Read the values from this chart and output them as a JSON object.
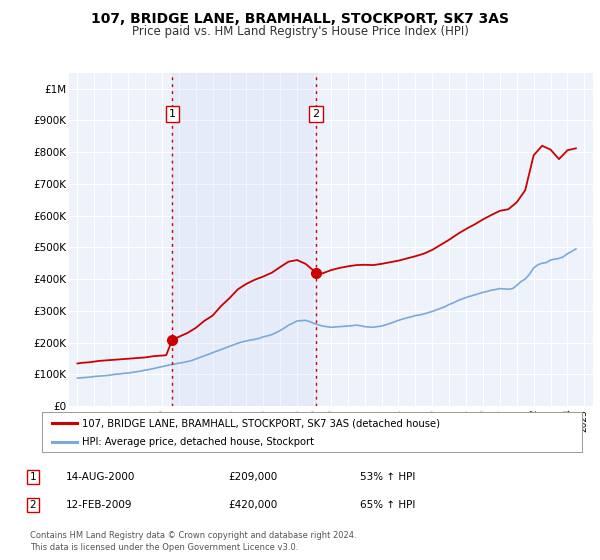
{
  "title": "107, BRIDGE LANE, BRAMHALL, STOCKPORT, SK7 3AS",
  "subtitle": "Price paid vs. HM Land Registry's House Price Index (HPI)",
  "xlim": [
    1994.5,
    2025.5
  ],
  "ylim": [
    0,
    1050000
  ],
  "yticks": [
    0,
    100000,
    200000,
    300000,
    400000,
    500000,
    600000,
    700000,
    800000,
    900000,
    1000000
  ],
  "ytick_labels": [
    "£0",
    "£100K",
    "£200K",
    "£300K",
    "£400K",
    "£500K",
    "£600K",
    "£700K",
    "£800K",
    "£900K",
    "£1M"
  ],
  "xticks": [
    1995,
    1996,
    1997,
    1998,
    1999,
    2000,
    2001,
    2002,
    2003,
    2004,
    2005,
    2006,
    2007,
    2008,
    2009,
    2010,
    2011,
    2012,
    2013,
    2014,
    2015,
    2016,
    2017,
    2018,
    2019,
    2020,
    2021,
    2022,
    2023,
    2024,
    2025
  ],
  "background_color": "#ffffff",
  "plot_bg_color": "#eef2fa",
  "grid_color": "#ffffff",
  "red_line_color": "#cc0000",
  "blue_line_color": "#7aaadd",
  "sale1_x": 2000.617,
  "sale1_y": 209000,
  "sale2_x": 2009.12,
  "sale2_y": 420000,
  "vline_color": "#cc0000",
  "marker_color": "#cc0000",
  "marker_size": 7,
  "legend_label_red": "107, BRIDGE LANE, BRAMHALL, STOCKPORT, SK7 3AS (detached house)",
  "legend_label_blue": "HPI: Average price, detached house, Stockport",
  "annotation1_num": "1",
  "annotation2_num": "2",
  "annot1_date": "14-AUG-2000",
  "annot1_price": "£209,000",
  "annot1_hpi": "53% ↑ HPI",
  "annot2_date": "12-FEB-2009",
  "annot2_price": "£420,000",
  "annot2_hpi": "65% ↑ HPI",
  "footer1": "Contains HM Land Registry data © Crown copyright and database right 2024.",
  "footer2": "This data is licensed under the Open Government Licence v3.0.",
  "hpi_x": [
    1995.0,
    1995.25,
    1995.5,
    1995.75,
    1996.0,
    1996.25,
    1996.5,
    1996.75,
    1997.0,
    1997.25,
    1997.5,
    1997.75,
    1998.0,
    1998.25,
    1998.5,
    1998.75,
    1999.0,
    1999.25,
    1999.5,
    1999.75,
    2000.0,
    2000.25,
    2000.5,
    2000.75,
    2001.0,
    2001.25,
    2001.5,
    2001.75,
    2002.0,
    2002.25,
    2002.5,
    2002.75,
    2003.0,
    2003.25,
    2003.5,
    2003.75,
    2004.0,
    2004.25,
    2004.5,
    2004.75,
    2005.0,
    2005.25,
    2005.5,
    2005.75,
    2006.0,
    2006.25,
    2006.5,
    2006.75,
    2007.0,
    2007.25,
    2007.5,
    2007.75,
    2008.0,
    2008.25,
    2008.5,
    2008.75,
    2009.0,
    2009.25,
    2009.5,
    2009.75,
    2010.0,
    2010.25,
    2010.5,
    2010.75,
    2011.0,
    2011.25,
    2011.5,
    2011.75,
    2012.0,
    2012.25,
    2012.5,
    2012.75,
    2013.0,
    2013.25,
    2013.5,
    2013.75,
    2014.0,
    2014.25,
    2014.5,
    2014.75,
    2015.0,
    2015.25,
    2015.5,
    2015.75,
    2016.0,
    2016.25,
    2016.5,
    2016.75,
    2017.0,
    2017.25,
    2017.5,
    2017.75,
    2018.0,
    2018.25,
    2018.5,
    2018.75,
    2019.0,
    2019.25,
    2019.5,
    2019.75,
    2020.0,
    2020.25,
    2020.5,
    2020.75,
    2021.0,
    2021.25,
    2021.5,
    2021.75,
    2022.0,
    2022.25,
    2022.5,
    2022.75,
    2023.0,
    2023.25,
    2023.5,
    2023.75,
    2024.0,
    2024.25,
    2024.5
  ],
  "hpi_y": [
    88000,
    89000,
    90000,
    91000,
    93000,
    94000,
    95000,
    96000,
    98000,
    100000,
    101000,
    103000,
    104000,
    106000,
    108000,
    110000,
    113000,
    115000,
    118000,
    121000,
    124000,
    127000,
    130000,
    132000,
    135000,
    137000,
    140000,
    143000,
    148000,
    153000,
    158000,
    163000,
    168000,
    173000,
    178000,
    183000,
    188000,
    193000,
    198000,
    202000,
    205000,
    208000,
    210000,
    213000,
    218000,
    221000,
    225000,
    231000,
    238000,
    246000,
    255000,
    261000,
    268000,
    269000,
    270000,
    266000,
    260000,
    256000,
    252000,
    250000,
    248000,
    249000,
    250000,
    251000,
    252000,
    253000,
    255000,
    253000,
    250000,
    249000,
    248000,
    250000,
    252000,
    256000,
    260000,
    265000,
    270000,
    274000,
    278000,
    281000,
    285000,
    287000,
    290000,
    294000,
    298000,
    303000,
    308000,
    313000,
    320000,
    325000,
    332000,
    337000,
    342000,
    346000,
    350000,
    354000,
    358000,
    361000,
    365000,
    367000,
    370000,
    369000,
    368000,
    370000,
    380000,
    392000,
    400000,
    415000,
    435000,
    445000,
    450000,
    452000,
    460000,
    463000,
    465000,
    470000,
    480000,
    487000,
    495000
  ],
  "red_x": [
    1995.0,
    1995.25,
    1995.5,
    1995.75,
    1996.0,
    1996.25,
    1996.5,
    1996.75,
    1997.0,
    1997.25,
    1997.5,
    1997.75,
    1998.0,
    1998.25,
    1998.5,
    1998.75,
    1999.0,
    1999.25,
    1999.5,
    1999.75,
    2000.0,
    2000.25,
    2000.617,
    2001.0,
    2001.5,
    2002.0,
    2002.5,
    2003.0,
    2003.5,
    2004.0,
    2004.5,
    2005.0,
    2005.5,
    2006.0,
    2006.5,
    2007.0,
    2007.5,
    2008.0,
    2008.5,
    2009.12,
    2009.5,
    2010.0,
    2010.5,
    2011.0,
    2011.5,
    2012.0,
    2012.5,
    2013.0,
    2013.5,
    2014.0,
    2014.5,
    2015.0,
    2015.5,
    2016.0,
    2016.5,
    2017.0,
    2017.5,
    2018.0,
    2018.5,
    2019.0,
    2019.5,
    2020.0,
    2020.5,
    2021.0,
    2021.5,
    2022.0,
    2022.5,
    2023.0,
    2023.5,
    2024.0,
    2024.5
  ],
  "red_y": [
    134000,
    136000,
    137000,
    138000,
    140000,
    142000,
    143000,
    144000,
    145000,
    146000,
    147000,
    148000,
    149000,
    150000,
    151000,
    152000,
    153000,
    155000,
    157000,
    158000,
    159000,
    160000,
    209000,
    218000,
    230000,
    246000,
    268000,
    285000,
    315000,
    340000,
    368000,
    385000,
    398000,
    408000,
    420000,
    438000,
    455000,
    460000,
    448000,
    420000,
    418000,
    428000,
    435000,
    440000,
    444000,
    445000,
    444000,
    448000,
    453000,
    458000,
    465000,
    472000,
    480000,
    492000,
    508000,
    524000,
    542000,
    558000,
    572000,
    588000,
    602000,
    615000,
    620000,
    642000,
    680000,
    790000,
    820000,
    808000,
    778000,
    806000,
    812000
  ]
}
